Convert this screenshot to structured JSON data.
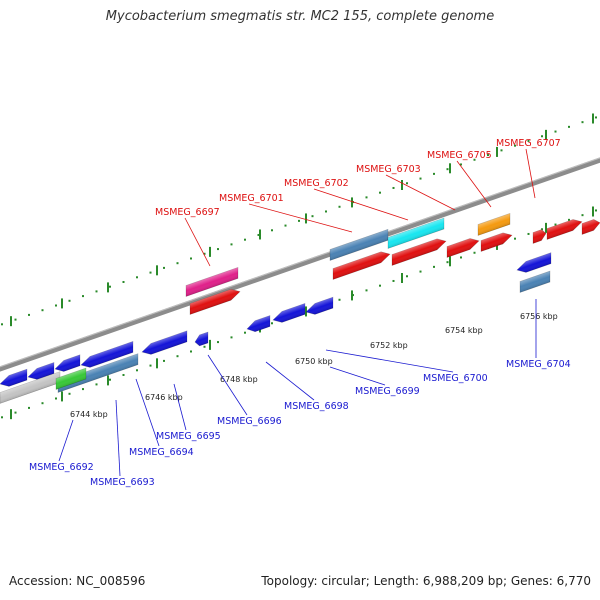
{
  "title": "Mycobacterium smegmatis str. MC2 155, complete genome",
  "footer": {
    "accession": "Accession: NC_008596",
    "summary": "Topology: circular; Length: 6,988,209 bp; Genes: 6,770"
  },
  "ticks": [
    "6744 kbp",
    "6746 kbp",
    "6748 kbp",
    "6750 kbp",
    "6752 kbp",
    "6754 kbp",
    "6756 kbp"
  ],
  "forward_genes": [
    "MSMEG_6697",
    "MSMEG_6701",
    "MSMEG_6702",
    "MSMEG_6703",
    "MSMEG_6705",
    "MSMEG_6707"
  ],
  "reverse_genes": [
    "MSMEG_6692",
    "MSMEG_6693",
    "MSMEG_6694",
    "MSMEG_6695",
    "MSMEG_6696",
    "MSMEG_6698",
    "MSMEG_6699",
    "MSMEG_6700",
    "MSMEG_6704"
  ],
  "colors": {
    "forward_label": "#dd1111",
    "reverse_label": "#1a1ad0",
    "backbone": "#8c8c8c",
    "tick": "#2a8a2a",
    "forward_cds": "#e01010",
    "reverse_cds": "#1414d8",
    "steelblue": "#4a82b4",
    "cyan": "#18e6f0",
    "pink": "#e0208a",
    "orange": "#f59a10",
    "green": "#38c838",
    "gray": "#c4c4c4"
  }
}
